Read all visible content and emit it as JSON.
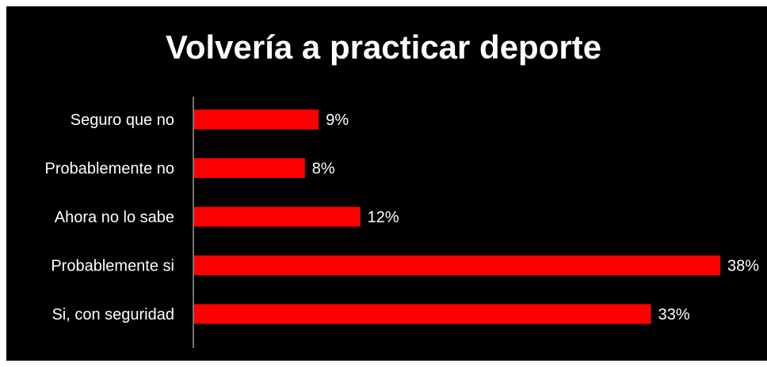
{
  "chart_data": {
    "type": "bar",
    "orientation": "horizontal",
    "title": "Volvería a practicar deporte",
    "categories": [
      "Seguro que no",
      "Probablemente no",
      "Ahora no lo sabe",
      "Probablemente si",
      "Si, con seguridad"
    ],
    "values": [
      9,
      8,
      12,
      38,
      33
    ],
    "value_labels": [
      "9%",
      "8%",
      "12%",
      "38%",
      "33%"
    ],
    "unit": "%",
    "xlim": [
      0,
      38
    ],
    "grid": false,
    "legend": "none"
  },
  "colors": {
    "background": "#000000",
    "bar": "#ff0000",
    "axis": "#bfbfbf",
    "text": "#ffffff",
    "outer_frame": "#ffffff"
  }
}
